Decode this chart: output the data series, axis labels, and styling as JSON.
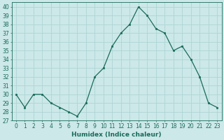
{
  "x": [
    0,
    1,
    2,
    3,
    4,
    5,
    6,
    7,
    8,
    9,
    10,
    11,
    12,
    13,
    14,
    15,
    16,
    17,
    18,
    19,
    20,
    21,
    22,
    23
  ],
  "y": [
    30,
    28.5,
    30,
    30,
    29,
    28.5,
    28,
    27.5,
    29,
    32,
    33,
    35.5,
    37,
    38,
    40,
    39,
    37.5,
    37,
    35,
    35.5,
    34,
    32,
    29,
    28.5
  ],
  "line_color": "#1a6b5a",
  "marker": "s",
  "marker_size": 2.0,
  "bg_color": "#cce8e8",
  "grid_color": "#aed4d4",
  "xlabel": "Humidex (Indice chaleur)",
  "ylim": [
    27,
    40.5
  ],
  "yticks": [
    27,
    28,
    29,
    30,
    31,
    32,
    33,
    34,
    35,
    36,
    37,
    38,
    39,
    40
  ],
  "xticks": [
    0,
    1,
    2,
    3,
    4,
    5,
    6,
    7,
    8,
    9,
    10,
    11,
    12,
    13,
    14,
    15,
    16,
    17,
    18,
    19,
    20,
    21,
    22,
    23
  ],
  "tick_fontsize": 5.5,
  "xlabel_fontsize": 6.5,
  "line_width": 0.9
}
